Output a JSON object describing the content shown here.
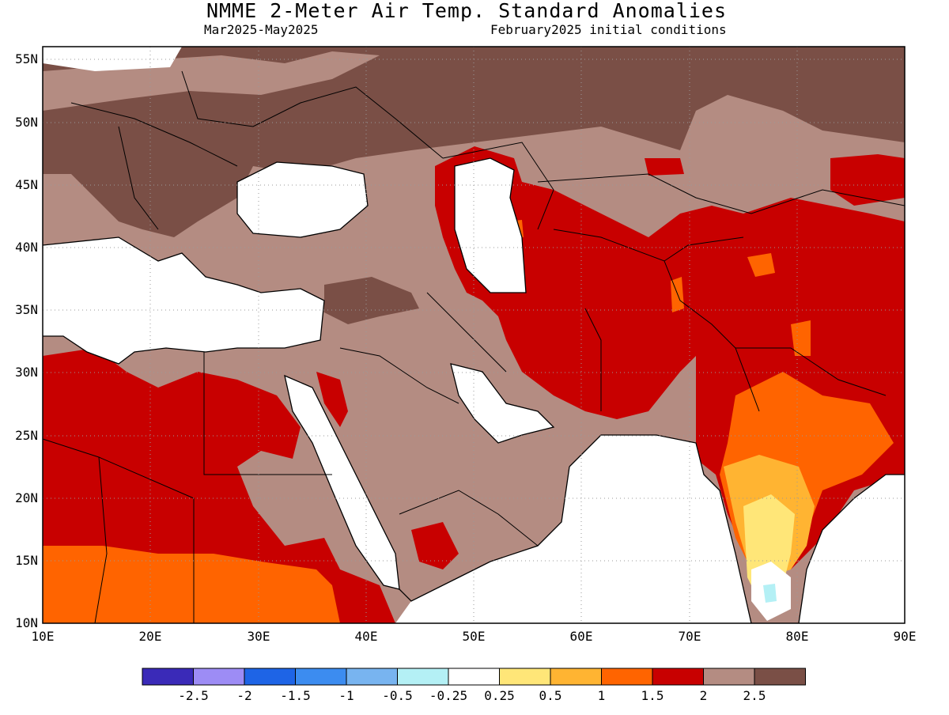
{
  "header": {
    "title": "NMME 2-Meter Air Temp. Standard Anomalies",
    "period": "Mar2025-May2025",
    "init": "February2025 initial conditions"
  },
  "map": {
    "lon_ticks": [
      "10E",
      "20E",
      "30E",
      "40E",
      "50E",
      "60E",
      "70E",
      "80E",
      "90E"
    ],
    "lat_ticks": [
      "55N",
      "50N",
      "45N",
      "40N",
      "35N",
      "30N",
      "25N",
      "20N",
      "15N",
      "10N"
    ],
    "lon_range": [
      10,
      90
    ],
    "lat_range": [
      10,
      56
    ],
    "grid": "dotted"
  },
  "colorbar": {
    "labels": [
      "-2.5",
      "-2",
      "-1.5",
      "-1",
      "-0.5",
      "-0.25",
      "0.25",
      "0.5",
      "1",
      "1.5",
      "2",
      "2.5"
    ],
    "colors": [
      "#3a2ab8",
      "#9d8cf5",
      "#1e64e6",
      "#3c8cf0",
      "#78b4f0",
      "#b4f0f5",
      "#ffffff",
      "#ffe678",
      "#ffb432",
      "#ff6400",
      "#c80000",
      "#b48c82",
      "#7a4f46"
    ]
  }
}
